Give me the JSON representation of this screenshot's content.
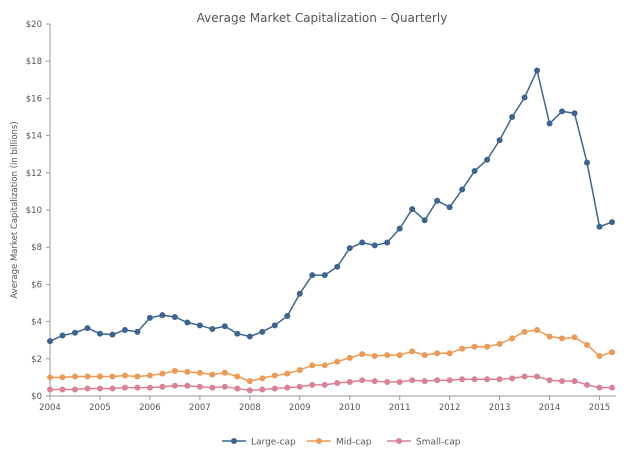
{
  "chart_data": {
    "type": "line",
    "title": "Average Market Capitalization – Quarterly",
    "xlabel": "",
    "ylabel": "Average Market Capitalization (in billions)",
    "xlim": [
      2004,
      2015.33
    ],
    "ylim": [
      0,
      20
    ],
    "y_ticks": [
      0,
      2,
      4,
      6,
      8,
      10,
      12,
      14,
      16,
      18,
      20
    ],
    "y_tick_labels": [
      "$0",
      "$2",
      "$4",
      "$6",
      "$8",
      "$10",
      "$12",
      "$14",
      "$16",
      "$18",
      "$20"
    ],
    "x_ticks": [
      2004,
      2005,
      2006,
      2007,
      2008,
      2009,
      2010,
      2011,
      2012,
      2013,
      2014,
      2015
    ],
    "x_tick_labels": [
      "2004",
      "2005",
      "2006",
      "2007",
      "2008",
      "2009",
      "2010",
      "2011",
      "2012",
      "2013",
      "2014",
      "2015"
    ],
    "grid": false,
    "legend_position": "bottom",
    "x": [
      2004.0,
      2004.25,
      2004.5,
      2004.75,
      2005.0,
      2005.25,
      2005.5,
      2005.75,
      2006.0,
      2006.25,
      2006.5,
      2006.75,
      2007.0,
      2007.25,
      2007.5,
      2007.75,
      2008.0,
      2008.25,
      2008.5,
      2008.75,
      2009.0,
      2009.25,
      2009.5,
      2009.75,
      2010.0,
      2010.25,
      2010.5,
      2010.75,
      2011.0,
      2011.25,
      2011.5,
      2011.75,
      2012.0,
      2012.25,
      2012.5,
      2012.75,
      2013.0,
      2013.25,
      2013.5,
      2013.75,
      2014.0,
      2014.25,
      2014.5,
      2014.75,
      2015.0,
      2015.25
    ],
    "series": [
      {
        "name": "Large-cap",
        "color": "#3e6591",
        "values": [
          2.95,
          3.25,
          3.4,
          3.65,
          3.35,
          3.3,
          3.55,
          3.45,
          4.2,
          4.35,
          4.25,
          3.95,
          3.8,
          3.6,
          3.75,
          3.35,
          3.2,
          3.45,
          3.8,
          4.3,
          5.5,
          6.5,
          6.5,
          6.95,
          7.95,
          8.25,
          8.1,
          8.25,
          9.0,
          10.05,
          9.45,
          10.5,
          10.15,
          11.1,
          12.1,
          12.7,
          13.75,
          15.0,
          16.05,
          17.5,
          14.65,
          15.3,
          15.2,
          12.55,
          9.1,
          9.35
        ]
      },
      {
        "name": "Mid-cap",
        "color": "#ec9a54",
        "values": [
          1.0,
          1.0,
          1.05,
          1.05,
          1.05,
          1.05,
          1.1,
          1.05,
          1.1,
          1.2,
          1.35,
          1.3,
          1.25,
          1.15,
          1.25,
          1.05,
          0.8,
          0.95,
          1.1,
          1.2,
          1.4,
          1.65,
          1.65,
          1.85,
          2.05,
          2.25,
          2.15,
          2.2,
          2.2,
          2.4,
          2.2,
          2.3,
          2.3,
          2.55,
          2.65,
          2.65,
          2.8,
          3.1,
          3.45,
          3.55,
          3.2,
          3.1,
          3.15,
          2.75,
          2.15,
          2.35
        ]
      },
      {
        "name": "Small-cap",
        "color": "#d98296",
        "values": [
          0.35,
          0.35,
          0.35,
          0.4,
          0.4,
          0.4,
          0.45,
          0.45,
          0.45,
          0.5,
          0.55,
          0.55,
          0.5,
          0.45,
          0.5,
          0.4,
          0.3,
          0.35,
          0.4,
          0.45,
          0.5,
          0.6,
          0.6,
          0.7,
          0.75,
          0.85,
          0.8,
          0.75,
          0.75,
          0.85,
          0.8,
          0.85,
          0.85,
          0.9,
          0.9,
          0.9,
          0.9,
          0.95,
          1.05,
          1.05,
          0.85,
          0.8,
          0.8,
          0.6,
          0.45,
          0.45
        ]
      }
    ]
  }
}
